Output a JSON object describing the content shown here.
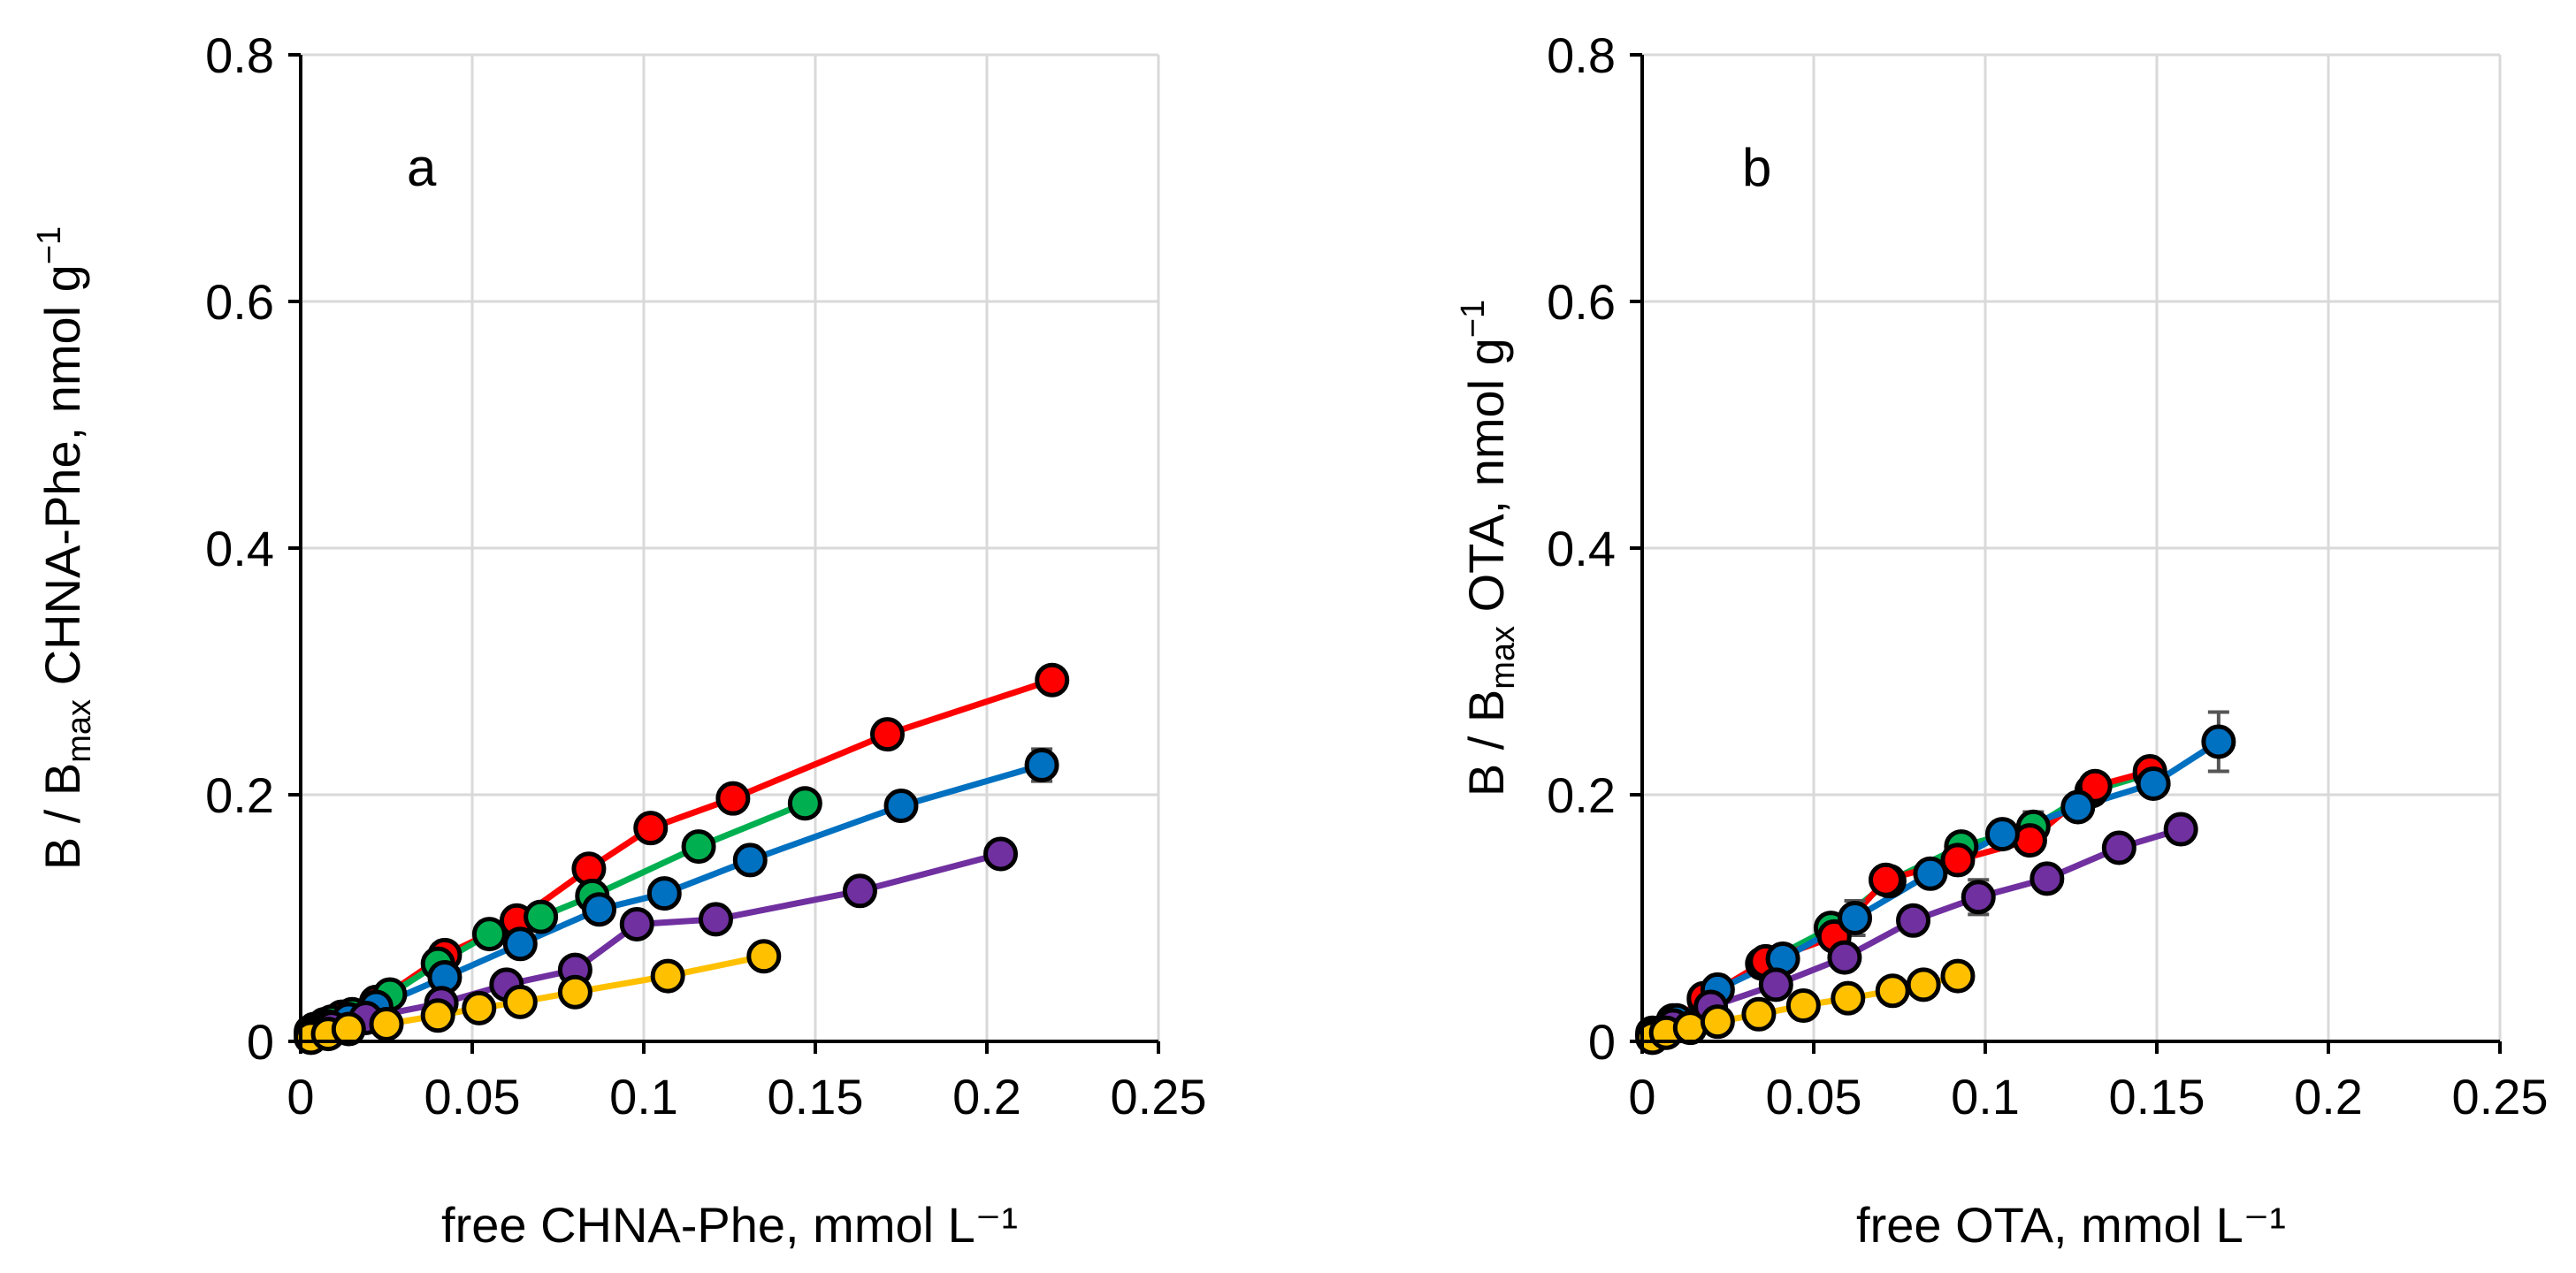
{
  "chart_data": [
    {
      "type": "scatter",
      "panel_label": "a",
      "ylabel": {
        "pre": "B / B",
        "sub": "max",
        "post": " CHNA-Phe, nmol g",
        "sup": "−1"
      },
      "xlabel": "free CHNA-Phe, mmol L⁻¹",
      "xlim": [
        0,
        0.25
      ],
      "ylim": [
        0,
        0.8
      ],
      "x_ticks": [
        "0",
        "0.05",
        "0.1",
        "0.15",
        "0.2",
        "0.25"
      ],
      "y_ticks": [
        "0",
        "0.2",
        "0.4",
        "0.6",
        "0.8"
      ],
      "grid": true,
      "series": [
        {
          "color": "#FF0000",
          "x": [
            0.003,
            0.007,
            0.012,
            0.022,
            0.042,
            0.063,
            0.084,
            0.102,
            0.126,
            0.171,
            0.219
          ],
          "y": [
            0.008,
            0.014,
            0.02,
            0.032,
            0.07,
            0.098,
            0.14,
            0.173,
            0.197,
            0.249,
            0.293
          ]
        },
        {
          "color": "#00B050",
          "x": [
            0.004,
            0.009,
            0.015,
            0.026,
            0.04,
            0.055,
            0.07,
            0.085,
            0.116,
            0.147
          ],
          "y": [
            0.01,
            0.016,
            0.022,
            0.038,
            0.063,
            0.087,
            0.101,
            0.118,
            0.158,
            0.193
          ]
        },
        {
          "color": "#0070C0",
          "x": [
            0.003,
            0.008,
            0.014,
            0.022,
            0.042,
            0.064,
            0.087,
            0.106,
            0.131,
            0.175,
            0.216
          ],
          "y": [
            0.007,
            0.012,
            0.018,
            0.028,
            0.052,
            0.079,
            0.107,
            0.12,
            0.147,
            0.191,
            0.224
          ],
          "err": [
            0,
            0,
            0,
            0,
            0,
            0,
            0,
            0,
            0,
            0,
            0.013
          ]
        },
        {
          "color": "#7030A0",
          "x": [
            0.003,
            0.009,
            0.019,
            0.041,
            0.06,
            0.08,
            0.098,
            0.121,
            0.163,
            0.204
          ],
          "y": [
            0.005,
            0.011,
            0.019,
            0.031,
            0.046,
            0.058,
            0.095,
            0.099,
            0.122,
            0.152
          ]
        },
        {
          "color": "#FFC000",
          "x": [
            0.003,
            0.008,
            0.014,
            0.025,
            0.04,
            0.052,
            0.064,
            0.08,
            0.107,
            0.135
          ],
          "y": [
            0.003,
            0.006,
            0.01,
            0.014,
            0.021,
            0.027,
            0.032,
            0.04,
            0.053,
            0.069
          ]
        }
      ]
    },
    {
      "type": "scatter",
      "panel_label": "b",
      "ylabel": {
        "pre": "B / B",
        "sub": "max",
        "post": " OTA, nmol g",
        "sup": "−1"
      },
      "xlabel": "free OTA, mmol L⁻¹",
      "xlim": [
        0,
        0.25
      ],
      "ylim": [
        0,
        0.8
      ],
      "x_ticks": [
        "0",
        "0.05",
        "0.1",
        "0.15",
        "0.2",
        "0.25"
      ],
      "y_ticks": [
        "0",
        "0.2",
        "0.4",
        "0.6",
        "0.8"
      ],
      "grid": true,
      "series": [
        {
          "color": "#00B050",
          "x": [
            0.003,
            0.009,
            0.018,
            0.035,
            0.055,
            0.072,
            0.093,
            0.114,
            0.131,
            0.148
          ],
          "y": [
            0.007,
            0.017,
            0.034,
            0.063,
            0.092,
            0.13,
            0.158,
            0.174,
            0.203,
            0.217
          ],
          "err": [
            0,
            0,
            0,
            0,
            0,
            0,
            0.006,
            0.012,
            0.01,
            0
          ]
        },
        {
          "color": "#FF0000",
          "x": [
            0.003,
            0.009,
            0.018,
            0.036,
            0.056,
            0.071,
            0.092,
            0.113,
            0.132,
            0.148
          ],
          "y": [
            0.006,
            0.016,
            0.035,
            0.065,
            0.085,
            0.131,
            0.147,
            0.163,
            0.207,
            0.219
          ]
        },
        {
          "color": "#0070C0",
          "x": [
            0.003,
            0.01,
            0.022,
            0.041,
            0.062,
            0.084,
            0.105,
            0.127,
            0.149,
            0.168
          ],
          "y": [
            0.005,
            0.017,
            0.042,
            0.067,
            0.1,
            0.136,
            0.168,
            0.19,
            0.209,
            0.243
          ],
          "err": [
            0,
            0,
            0,
            0,
            0.014,
            0,
            0,
            0,
            0,
            0.024
          ]
        },
        {
          "color": "#7030A0",
          "x": [
            0.003,
            0.009,
            0.02,
            0.039,
            0.059,
            0.079,
            0.098,
            0.118,
            0.139,
            0.157
          ],
          "y": [
            0.004,
            0.013,
            0.028,
            0.046,
            0.068,
            0.098,
            0.117,
            0.132,
            0.157,
            0.172
          ],
          "err": [
            0,
            0,
            0,
            0,
            0,
            0,
            0.014,
            0,
            0,
            0
          ]
        },
        {
          "color": "#FFC000",
          "x": [
            0.003,
            0.007,
            0.014,
            0.022,
            0.034,
            0.047,
            0.06,
            0.073,
            0.082,
            0.092
          ],
          "y": [
            0.003,
            0.007,
            0.011,
            0.016,
            0.022,
            0.029,
            0.035,
            0.041,
            0.046,
            0.053
          ]
        }
      ]
    }
  ]
}
